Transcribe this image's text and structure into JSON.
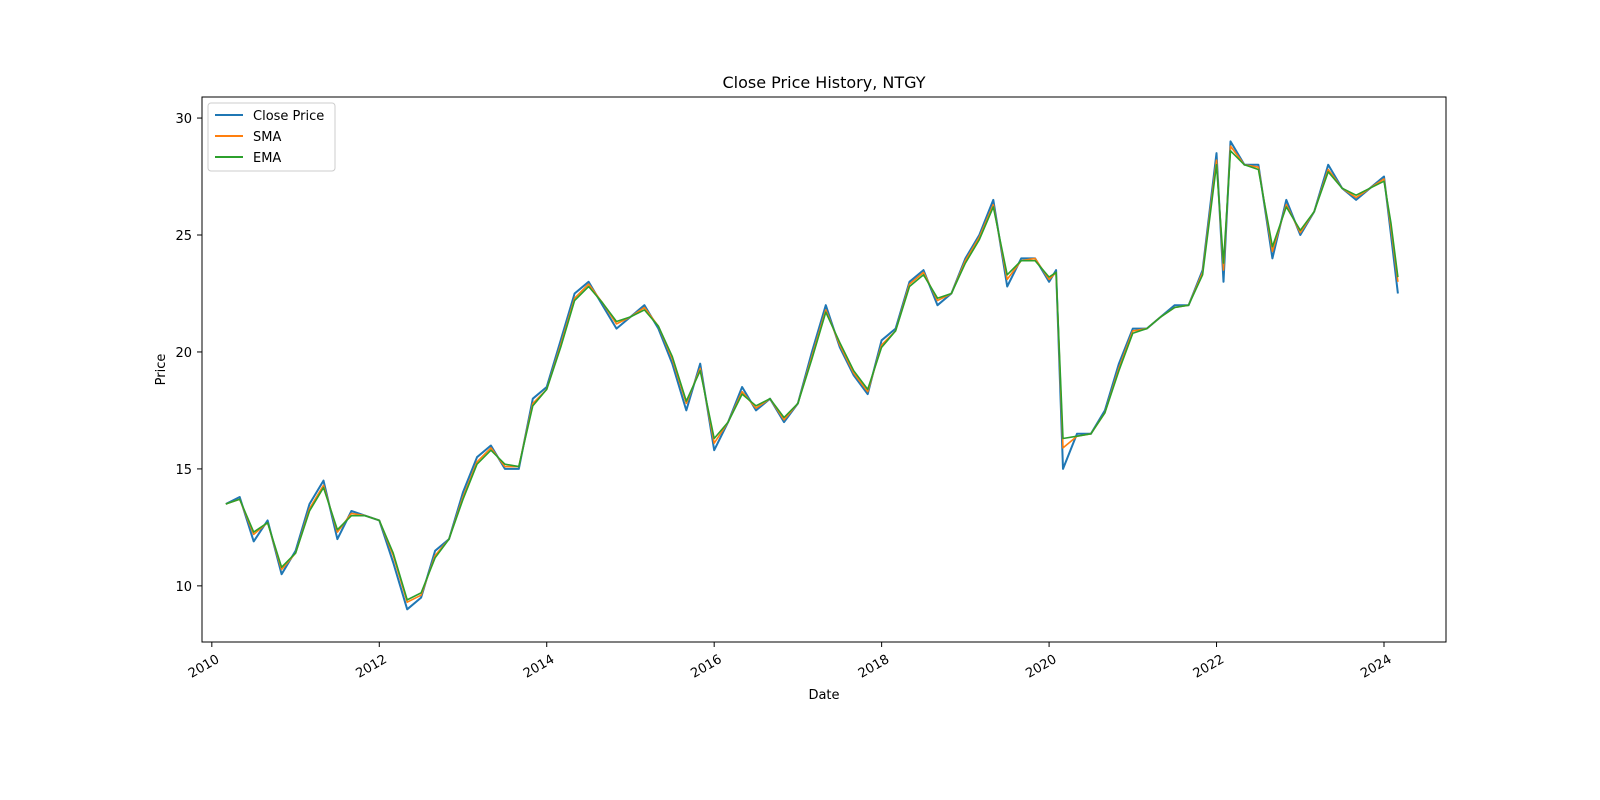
{
  "chart_data": {
    "type": "line",
    "title": "Close Price History, NTGY",
    "xlabel": "Date",
    "ylabel": "Price",
    "x_ticks": [
      "2010",
      "2012",
      "2014",
      "2016",
      "2018",
      "2020",
      "2022",
      "2024"
    ],
    "y_ticks": [
      "10",
      "15",
      "20",
      "25",
      "30"
    ],
    "xlim": [
      "2009-11-19",
      "2024-09-28"
    ],
    "ylim": [
      7.6,
      30.9
    ],
    "grid": false,
    "legend_position": "upper-left",
    "x": [
      "2010-03",
      "2010-05",
      "2010-07",
      "2010-09",
      "2010-11",
      "2011-01",
      "2011-03",
      "2011-05",
      "2011-07",
      "2011-09",
      "2011-11",
      "2012-01",
      "2012-03",
      "2012-05",
      "2012-07",
      "2012-09",
      "2012-11",
      "2013-01",
      "2013-03",
      "2013-05",
      "2013-07",
      "2013-09",
      "2013-11",
      "2014-01",
      "2014-03",
      "2014-05",
      "2014-07",
      "2014-09",
      "2014-11",
      "2015-01",
      "2015-03",
      "2015-05",
      "2015-07",
      "2015-09",
      "2015-11",
      "2016-01",
      "2016-03",
      "2016-05",
      "2016-07",
      "2016-09",
      "2016-11",
      "2017-01",
      "2017-03",
      "2017-05",
      "2017-07",
      "2017-09",
      "2017-11",
      "2018-01",
      "2018-03",
      "2018-05",
      "2018-07",
      "2018-09",
      "2018-11",
      "2019-01",
      "2019-03",
      "2019-05",
      "2019-07",
      "2019-09",
      "2019-11",
      "2020-01",
      "2020-02",
      "2020-03",
      "2020-05",
      "2020-07",
      "2020-09",
      "2020-11",
      "2021-01",
      "2021-03",
      "2021-05",
      "2021-07",
      "2021-09",
      "2021-11",
      "2022-01",
      "2022-02",
      "2022-03",
      "2022-05",
      "2022-07",
      "2022-09",
      "2022-11",
      "2023-01",
      "2023-03",
      "2023-05",
      "2023-07",
      "2023-09",
      "2023-11",
      "2024-01",
      "2024-02",
      "2024-03"
    ],
    "series": [
      {
        "name": "Close Price",
        "color": "#1f77b4",
        "values": [
          13.5,
          13.8,
          11.9,
          12.8,
          10.5,
          11.5,
          13.5,
          14.5,
          12.0,
          13.2,
          13.0,
          12.8,
          11.0,
          9.0,
          9.5,
          11.5,
          12.0,
          14.0,
          15.5,
          16.0,
          15.0,
          15.0,
          18.0,
          18.5,
          20.5,
          22.5,
          23.0,
          22.0,
          21.0,
          21.5,
          22.0,
          21.0,
          19.5,
          17.5,
          19.5,
          15.8,
          17.0,
          18.5,
          17.5,
          18.0,
          17.0,
          17.8,
          20.0,
          22.0,
          20.2,
          19.0,
          18.2,
          20.5,
          21.0,
          23.0,
          23.5,
          22.0,
          22.5,
          24.0,
          25.0,
          26.5,
          22.8,
          24.0,
          24.0,
          23.0,
          23.5,
          15.0,
          16.5,
          16.5,
          17.5,
          19.5,
          21.0,
          21.0,
          21.5,
          22.0,
          22.0,
          23.5,
          28.5,
          23.0,
          29.0,
          28.0,
          28.0,
          24.0,
          26.5,
          25.0,
          26.0,
          28.0,
          27.0,
          26.5,
          27.0,
          27.5,
          25.0,
          22.5
        ]
      },
      {
        "name": "SMA",
        "color": "#ff7f0e",
        "values": [
          13.5,
          13.7,
          12.2,
          12.7,
          10.7,
          11.4,
          13.3,
          14.3,
          12.3,
          13.1,
          13.0,
          12.8,
          11.3,
          9.3,
          9.6,
          11.3,
          12.0,
          13.8,
          15.3,
          15.9,
          15.1,
          15.1,
          17.8,
          18.4,
          20.3,
          22.3,
          22.9,
          22.1,
          21.2,
          21.5,
          21.9,
          21.1,
          19.7,
          17.8,
          19.3,
          16.1,
          17.0,
          18.3,
          17.6,
          18.0,
          17.1,
          17.8,
          19.8,
          21.8,
          20.3,
          19.1,
          18.3,
          20.3,
          20.9,
          22.9,
          23.4,
          22.2,
          22.5,
          23.9,
          24.9,
          26.3,
          23.1,
          23.9,
          24.0,
          23.1,
          23.4,
          15.9,
          16.4,
          16.5,
          17.4,
          19.3,
          20.9,
          21.0,
          21.5,
          21.9,
          22.0,
          23.4,
          28.2,
          23.5,
          28.8,
          28.0,
          27.9,
          24.3,
          26.3,
          25.1,
          26.0,
          27.8,
          27.0,
          26.6,
          27.0,
          27.4,
          25.3,
          23.0
        ]
      },
      {
        "name": "EMA",
        "color": "#2ca02c",
        "values": [
          13.5,
          13.7,
          12.3,
          12.7,
          10.8,
          11.4,
          13.2,
          14.2,
          12.4,
          13.0,
          13.0,
          12.8,
          11.4,
          9.4,
          9.7,
          11.2,
          12.0,
          13.7,
          15.2,
          15.8,
          15.2,
          15.1,
          17.7,
          18.4,
          20.2,
          22.2,
          22.8,
          22.1,
          21.3,
          21.5,
          21.8,
          21.1,
          19.8,
          17.9,
          19.2,
          16.3,
          17.0,
          18.2,
          17.7,
          18.0,
          17.2,
          17.8,
          19.7,
          21.7,
          20.4,
          19.2,
          18.4,
          20.2,
          20.9,
          22.8,
          23.3,
          22.3,
          22.5,
          23.8,
          24.8,
          26.2,
          23.3,
          23.9,
          23.9,
          23.2,
          23.4,
          16.3,
          16.4,
          16.5,
          17.4,
          19.2,
          20.8,
          21.0,
          21.5,
          21.9,
          22.0,
          23.3,
          28.0,
          23.8,
          28.6,
          28.0,
          27.8,
          24.5,
          26.2,
          25.2,
          26.0,
          27.7,
          27.0,
          26.7,
          27.0,
          27.3,
          25.5,
          23.2
        ]
      }
    ]
  }
}
